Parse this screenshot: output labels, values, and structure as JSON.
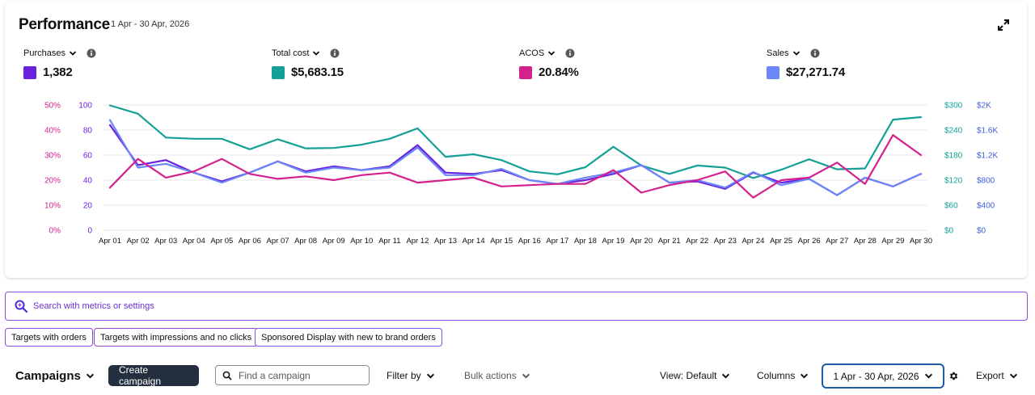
{
  "performance": {
    "title": "Performance",
    "date_range": "1 Apr - 30 Apr, 2026",
    "metrics": [
      {
        "label": "Purchases",
        "value": "1,382",
        "color": "#6b1fe0"
      },
      {
        "label": "Total cost",
        "value": "$5,683.15",
        "color": "#14a096"
      },
      {
        "label": "ACOS",
        "value": "20.84%",
        "color": "#d4218e"
      },
      {
        "label": "Sales",
        "value": "$27,271.74",
        "color": "#6b86f7"
      }
    ]
  },
  "chart_data": {
    "type": "line",
    "x": [
      "Apr 01",
      "Apr 02",
      "Apr 03",
      "Apr 04",
      "Apr 05",
      "Apr 06",
      "Apr 07",
      "Apr 08",
      "Apr 09",
      "Apr 10",
      "Apr 11",
      "Apr 12",
      "Apr 13",
      "Apr 14",
      "Apr 15",
      "Apr 16",
      "Apr 17",
      "Apr 18",
      "Apr 19",
      "Apr 20",
      "Apr 21",
      "Apr 22",
      "Apr 23",
      "Apr 24",
      "Apr 25",
      "Apr 26",
      "Apr 27",
      "Apr 28",
      "Apr 29",
      "Apr 30"
    ],
    "axes": {
      "acos_ticks": [
        "0%",
        "10%",
        "20%",
        "30%",
        "40%",
        "50%"
      ],
      "purchases_ticks": [
        "0",
        "20",
        "40",
        "60",
        "80",
        "100"
      ],
      "cost_ticks": [
        "$0",
        "$60",
        "$120",
        "$180",
        "$240",
        "$300"
      ],
      "sales_ticks": [
        "$0",
        "$400",
        "$800",
        "$1.2K",
        "$1.6K",
        "$2K"
      ]
    },
    "series": [
      {
        "name": "Total cost",
        "axis": "cost",
        "color": "#14a096",
        "ylim": [
          0,
          300
        ],
        "values": [
          299,
          279,
          222,
          219,
          219,
          194,
          218,
          196,
          197,
          205,
          219,
          244,
          176,
          182,
          168,
          141,
          134,
          151,
          200,
          155,
          135,
          155,
          150,
          125,
          145,
          170,
          146,
          148,
          265,
          271
        ]
      },
      {
        "name": "Purchases",
        "axis": "purchases",
        "color": "#6b1fe0",
        "ylim": [
          0,
          100
        ],
        "values": [
          84,
          52,
          56,
          46,
          39,
          46,
          55,
          47,
          51,
          48,
          51,
          68,
          46,
          45,
          48,
          40,
          37,
          40,
          45,
          52,
          38,
          39,
          33,
          46,
          38,
          41,
          28,
          42,
          35,
          45
        ]
      },
      {
        "name": "Sales",
        "axis": "sales",
        "color": "#6b86f7",
        "ylim": [
          0,
          2000
        ],
        "values": [
          1760,
          1000,
          1060,
          920,
          760,
          920,
          1100,
          920,
          1000,
          960,
          1000,
          1320,
          880,
          880,
          980,
          800,
          740,
          840,
          920,
          1040,
          760,
          800,
          680,
          930,
          720,
          820,
          560,
          840,
          700,
          900
        ]
      },
      {
        "name": "ACOS",
        "axis": "acos",
        "color": "#d4218e",
        "ylim": [
          0,
          50
        ],
        "values": [
          17,
          28.5,
          21,
          23.5,
          28.5,
          22.5,
          20.5,
          21.5,
          20,
          22,
          23,
          19,
          20,
          21,
          17.5,
          18,
          18.5,
          18.5,
          24,
          15,
          18,
          20,
          23.5,
          13,
          20,
          21,
          27,
          18.5,
          38,
          30
        ]
      }
    ],
    "grid": true,
    "legend": "top"
  },
  "search": {
    "placeholder": "Search with metrics or settings"
  },
  "chips": [
    "Targets with orders",
    "Targets with impressions and no clicks",
    "Sponsored Display with new to brand orders"
  ],
  "toolbar": {
    "campaigns": "Campaigns",
    "create": "Create campaign",
    "find_placeholder": "Find a campaign",
    "filter": "Filter by",
    "bulk": "Bulk actions",
    "view": "View: Default",
    "columns": "Columns",
    "date": "1 Apr - 30 Apr, 2026",
    "export": "Export"
  }
}
